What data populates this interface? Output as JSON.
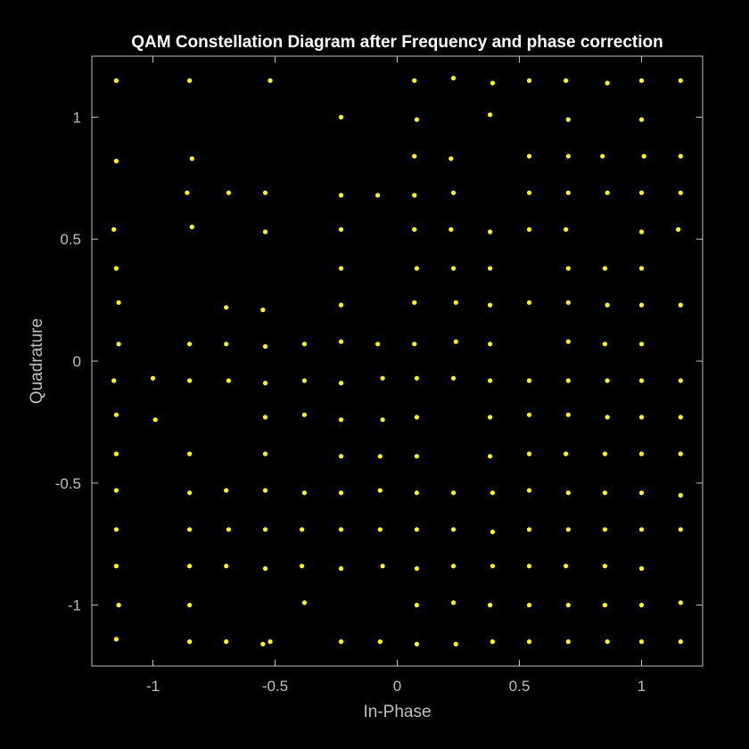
{
  "chart_data": {
    "type": "scatter",
    "title": "QAM Constellation Diagram after Frequency and phase correction",
    "xlabel": "In-Phase",
    "ylabel": "Quadrature",
    "xlim": [
      -1.25,
      1.25
    ],
    "ylim": [
      -1.25,
      1.25
    ],
    "xticks": [
      -1,
      -0.5,
      0,
      0.5,
      1
    ],
    "xtick_labels": [
      "-1",
      "-0.5",
      "0",
      "0.5",
      "1"
    ],
    "yticks": [
      -1,
      -0.5,
      0,
      0.5,
      1
    ],
    "ytick_labels": [
      "-1",
      "-0.5",
      "0",
      "0.5",
      "1"
    ],
    "grid": false,
    "legend": false,
    "background_color": "#000000",
    "axis_color": "#bfbfbf",
    "title_color": "#ffffff",
    "marker_color": "#ffff00",
    "series": [
      {
        "points": [
          [
            -1.15,
            1.15
          ],
          [
            -0.85,
            1.15
          ],
          [
            -0.52,
            1.15
          ],
          [
            0.07,
            1.15
          ],
          [
            0.23,
            1.16
          ],
          [
            0.39,
            1.14
          ],
          [
            0.54,
            1.15
          ],
          [
            0.69,
            1.15
          ],
          [
            0.86,
            1.14
          ],
          [
            1.0,
            1.15
          ],
          [
            1.16,
            1.15
          ],
          [
            -0.23,
            1.0
          ],
          [
            0.08,
            0.99
          ],
          [
            0.38,
            1.01
          ],
          [
            0.7,
            0.99
          ],
          [
            1.0,
            0.99
          ],
          [
            -1.15,
            0.82
          ],
          [
            -0.84,
            0.83
          ],
          [
            0.07,
            0.84
          ],
          [
            0.22,
            0.83
          ],
          [
            0.54,
            0.84
          ],
          [
            0.7,
            0.84
          ],
          [
            0.84,
            0.84
          ],
          [
            1.01,
            0.84
          ],
          [
            1.16,
            0.84
          ],
          [
            -0.86,
            0.69
          ],
          [
            -0.69,
            0.69
          ],
          [
            -0.54,
            0.69
          ],
          [
            -0.23,
            0.68
          ],
          [
            -0.08,
            0.68
          ],
          [
            0.07,
            0.68
          ],
          [
            0.23,
            0.69
          ],
          [
            0.54,
            0.69
          ],
          [
            0.7,
            0.69
          ],
          [
            0.86,
            0.69
          ],
          [
            1.0,
            0.69
          ],
          [
            1.16,
            0.69
          ],
          [
            -1.16,
            0.54
          ],
          [
            -0.84,
            0.55
          ],
          [
            -0.54,
            0.53
          ],
          [
            -0.23,
            0.54
          ],
          [
            0.07,
            0.54
          ],
          [
            0.22,
            0.54
          ],
          [
            0.38,
            0.53
          ],
          [
            0.54,
            0.54
          ],
          [
            0.69,
            0.54
          ],
          [
            1.0,
            0.53
          ],
          [
            1.15,
            0.54
          ],
          [
            -1.15,
            0.38
          ],
          [
            -0.23,
            0.38
          ],
          [
            0.08,
            0.38
          ],
          [
            0.23,
            0.38
          ],
          [
            0.38,
            0.38
          ],
          [
            0.7,
            0.38
          ],
          [
            0.85,
            0.38
          ],
          [
            1.0,
            0.38
          ],
          [
            -1.14,
            0.24
          ],
          [
            -0.7,
            0.22
          ],
          [
            -0.55,
            0.21
          ],
          [
            -0.23,
            0.23
          ],
          [
            0.07,
            0.24
          ],
          [
            0.24,
            0.24
          ],
          [
            0.38,
            0.23
          ],
          [
            0.54,
            0.24
          ],
          [
            0.7,
            0.24
          ],
          [
            0.86,
            0.23
          ],
          [
            1.0,
            0.23
          ],
          [
            1.16,
            0.23
          ],
          [
            -1.14,
            0.07
          ],
          [
            -0.85,
            0.07
          ],
          [
            -0.7,
            0.07
          ],
          [
            -0.54,
            0.06
          ],
          [
            -0.38,
            0.07
          ],
          [
            -0.23,
            0.08
          ],
          [
            -0.08,
            0.07
          ],
          [
            0.07,
            0.07
          ],
          [
            0.24,
            0.08
          ],
          [
            0.38,
            0.07
          ],
          [
            0.7,
            0.08
          ],
          [
            0.85,
            0.07
          ],
          [
            1.0,
            0.07
          ],
          [
            -1.16,
            -0.08
          ],
          [
            -1.0,
            -0.07
          ],
          [
            -0.85,
            -0.08
          ],
          [
            -0.69,
            -0.08
          ],
          [
            -0.54,
            -0.09
          ],
          [
            -0.38,
            -0.08
          ],
          [
            -0.23,
            -0.09
          ],
          [
            -0.06,
            -0.07
          ],
          [
            0.08,
            -0.07
          ],
          [
            0.23,
            -0.07
          ],
          [
            0.38,
            -0.08
          ],
          [
            0.54,
            -0.08
          ],
          [
            0.7,
            -0.08
          ],
          [
            0.86,
            -0.08
          ],
          [
            1.0,
            -0.08
          ],
          [
            1.16,
            -0.08
          ],
          [
            -1.15,
            -0.22
          ],
          [
            -0.99,
            -0.24
          ],
          [
            -0.54,
            -0.23
          ],
          [
            -0.38,
            -0.22
          ],
          [
            -0.23,
            -0.24
          ],
          [
            -0.06,
            -0.24
          ],
          [
            0.08,
            -0.23
          ],
          [
            0.38,
            -0.23
          ],
          [
            0.54,
            -0.22
          ],
          [
            0.7,
            -0.22
          ],
          [
            0.86,
            -0.23
          ],
          [
            1.0,
            -0.23
          ],
          [
            1.16,
            -0.23
          ],
          [
            -1.15,
            -0.38
          ],
          [
            -0.85,
            -0.38
          ],
          [
            -0.54,
            -0.38
          ],
          [
            -0.23,
            -0.39
          ],
          [
            -0.07,
            -0.39
          ],
          [
            0.08,
            -0.39
          ],
          [
            0.38,
            -0.39
          ],
          [
            0.54,
            -0.38
          ],
          [
            0.69,
            -0.38
          ],
          [
            0.85,
            -0.38
          ],
          [
            1.0,
            -0.38
          ],
          [
            1.16,
            -0.38
          ],
          [
            -1.15,
            -0.53
          ],
          [
            -0.85,
            -0.54
          ],
          [
            -0.7,
            -0.53
          ],
          [
            -0.54,
            -0.53
          ],
          [
            -0.38,
            -0.54
          ],
          [
            -0.23,
            -0.54
          ],
          [
            -0.07,
            -0.53
          ],
          [
            0.08,
            -0.54
          ],
          [
            0.23,
            -0.54
          ],
          [
            0.39,
            -0.54
          ],
          [
            0.54,
            -0.53
          ],
          [
            0.7,
            -0.54
          ],
          [
            0.85,
            -0.54
          ],
          [
            1.0,
            -0.54
          ],
          [
            1.16,
            -0.55
          ],
          [
            -1.15,
            -0.69
          ],
          [
            -0.85,
            -0.69
          ],
          [
            -0.69,
            -0.69
          ],
          [
            -0.54,
            -0.69
          ],
          [
            -0.39,
            -0.69
          ],
          [
            -0.23,
            -0.69
          ],
          [
            -0.07,
            -0.69
          ],
          [
            0.08,
            -0.69
          ],
          [
            0.23,
            -0.69
          ],
          [
            0.39,
            -0.7
          ],
          [
            0.54,
            -0.69
          ],
          [
            0.7,
            -0.69
          ],
          [
            0.85,
            -0.69
          ],
          [
            1.0,
            -0.69
          ],
          [
            1.16,
            -0.69
          ],
          [
            -1.15,
            -0.84
          ],
          [
            -0.85,
            -0.84
          ],
          [
            -0.7,
            -0.84
          ],
          [
            -0.54,
            -0.85
          ],
          [
            -0.39,
            -0.84
          ],
          [
            -0.23,
            -0.85
          ],
          [
            -0.06,
            -0.84
          ],
          [
            0.08,
            -0.85
          ],
          [
            0.23,
            -0.84
          ],
          [
            0.39,
            -0.84
          ],
          [
            0.54,
            -0.84
          ],
          [
            0.69,
            -0.84
          ],
          [
            0.85,
            -0.84
          ],
          [
            1.0,
            -0.85
          ],
          [
            -1.14,
            -1.0
          ],
          [
            -0.85,
            -1.0
          ],
          [
            -0.38,
            -0.99
          ],
          [
            0.08,
            -1.0
          ],
          [
            0.23,
            -0.99
          ],
          [
            0.38,
            -1.0
          ],
          [
            0.54,
            -1.0
          ],
          [
            0.7,
            -1.0
          ],
          [
            0.85,
            -1.0
          ],
          [
            1.0,
            -1.0
          ],
          [
            1.16,
            -0.99
          ],
          [
            -1.15,
            -1.14
          ],
          [
            -0.85,
            -1.15
          ],
          [
            -0.7,
            -1.15
          ],
          [
            -0.55,
            -1.16
          ],
          [
            -0.52,
            -1.15
          ],
          [
            -0.23,
            -1.15
          ],
          [
            -0.07,
            -1.15
          ],
          [
            0.08,
            -1.16
          ],
          [
            0.24,
            -1.16
          ],
          [
            0.39,
            -1.15
          ],
          [
            0.54,
            -1.15
          ],
          [
            0.7,
            -1.15
          ],
          [
            0.86,
            -1.15
          ],
          [
            1.0,
            -1.15
          ],
          [
            1.16,
            -1.15
          ]
        ]
      }
    ]
  }
}
